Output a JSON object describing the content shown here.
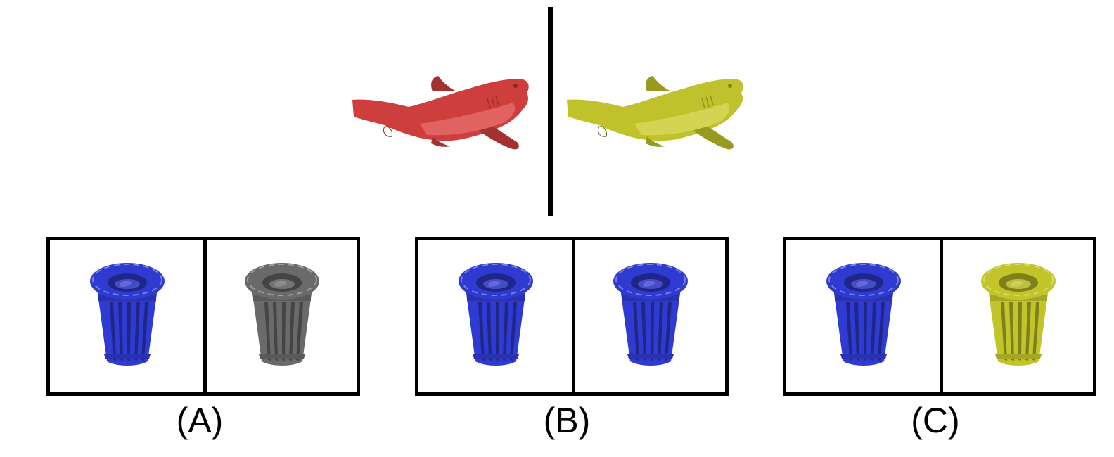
{
  "reference": {
    "left_color": "#d9413f",
    "right_color": "#c9cc2c"
  },
  "options": [
    {
      "label": "(A)",
      "left_color": "#2f3bd0",
      "right_color": "#6a6a6a"
    },
    {
      "label": "(B)",
      "left_color": "#2f3bd0",
      "right_color": "#2f3bd0"
    },
    {
      "label": "(C)",
      "left_color": "#2f3bd0",
      "right_color": "#c2c52a"
    }
  ],
  "icons": {
    "reference_object": "shark-icon",
    "option_object": "trash-can-icon"
  }
}
